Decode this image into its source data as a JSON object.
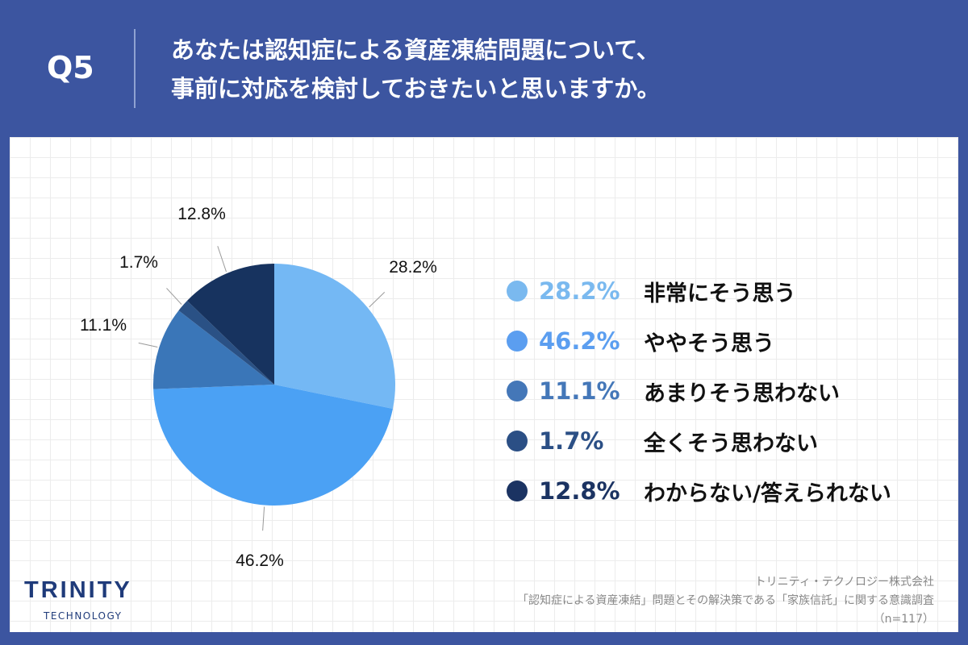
{
  "header": {
    "question_no": "Q5",
    "title_line1": "あなたは認知症による資産凍結問題について、",
    "title_line2": "事前に対応を検討しておきたいと思いますか。"
  },
  "chart_data": {
    "type": "pie",
    "start": "top",
    "direction": "clockwise",
    "categories": [
      "非常にそう思う",
      "ややそう思う",
      "あまりそう思わない",
      "全くそう思わない",
      "わからない/答えられない"
    ],
    "values": [
      28.2,
      46.2,
      11.1,
      1.7,
      12.8
    ],
    "labels": [
      "28.2%",
      "46.2%",
      "11.1%",
      "1.7%",
      "12.8%"
    ],
    "colors": [
      "#74b8f4",
      "#4ba1f4",
      "#3a76b8",
      "#2a5185",
      "#17335f"
    ],
    "legend_colors": [
      "#7ab9ef",
      "#5b9ef0",
      "#4477b8",
      "#2b4f85",
      "#1b3362"
    ],
    "legend": "right"
  },
  "footer": {
    "logo_main": "TRINITY",
    "logo_sub": "TECHNOLOGY",
    "source_line1": "トリニティ・テクノロジー株式会社",
    "source_line2": "「認知症による資産凍結」問題とその解決策である「家族信託」に関する意識調査",
    "source_line3": "（n=117）"
  }
}
